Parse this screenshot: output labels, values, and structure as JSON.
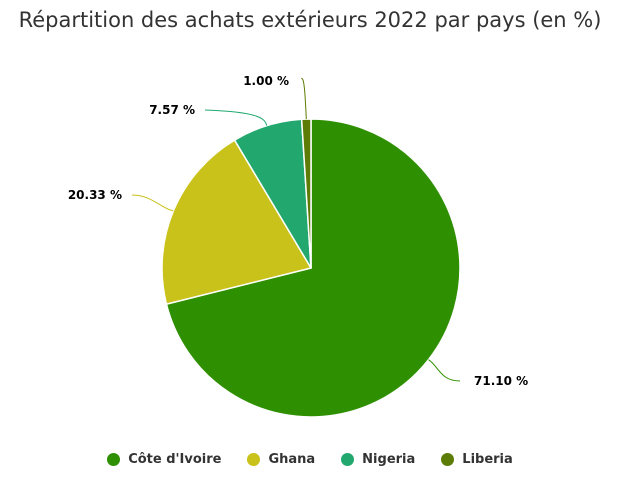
{
  "chart_data": {
    "type": "pie",
    "title": "Répartition des achats extérieurs 2022 par pays (en %)",
    "unit": "%",
    "slices": [
      {
        "name": "Côte d'Ivoire",
        "value": 71.1,
        "label": "71.10 %",
        "color": "#2e9000"
      },
      {
        "name": "Ghana",
        "value": 20.33,
        "label": "20.33 %",
        "color": "#c9c21b"
      },
      {
        "name": "Nigeria",
        "value": 7.57,
        "label": "7.57 %",
        "color": "#22a86e"
      },
      {
        "name": "Liberia",
        "value": 1.0,
        "label": "1.00 %",
        "color": "#5c7c06"
      }
    ],
    "legend": {
      "position": "bottom",
      "items": [
        "Côte d'Ivoire",
        "Ghana",
        "Nigeria",
        "Liberia"
      ]
    },
    "data_labels": true
  }
}
